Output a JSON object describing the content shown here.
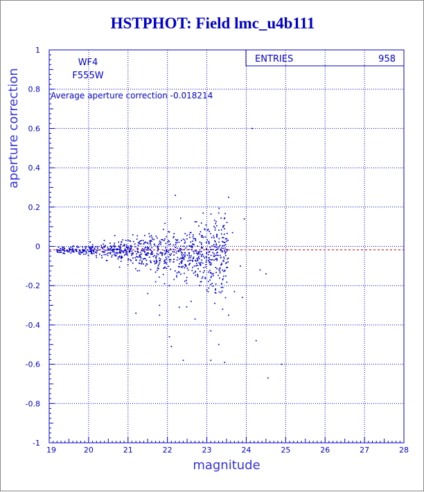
{
  "title": "HSTPHOT: Field lmc_u4b111",
  "chart_data": {
    "type": "scatter",
    "xlabel": "magnitude",
    "ylabel": "aperture correction",
    "xlim": [
      19,
      28
    ],
    "ylim": [
      -1,
      1
    ],
    "x_ticks": [
      "19",
      "20",
      "21",
      "22",
      "23",
      "24",
      "25",
      "26",
      "27",
      "28"
    ],
    "y_ticks": [
      "1",
      "0.8",
      "0.6",
      "0.4",
      "0.2",
      "0",
      "-0.2",
      "-0.4",
      "-0.6",
      "-0.8",
      "-1"
    ],
    "grid": true,
    "labels": {
      "chip": "WF4",
      "filter": "F555W"
    },
    "annotation": "Average aperture correction -0.018214",
    "average_line": -0.018214,
    "stats": {
      "label": "ENTRIES",
      "value": "958"
    },
    "colors": {
      "points": "#0000cc",
      "average_line": "#cc0000",
      "frame": "#0000cc"
    },
    "outliers": [
      [
        24.15,
        0.6
      ],
      [
        22.2,
        0.26
      ],
      [
        23.55,
        0.25
      ],
      [
        23.3,
        0.17
      ],
      [
        23.45,
        0.09
      ],
      [
        23.95,
        0.14
      ],
      [
        23.65,
        0.07
      ],
      [
        24.35,
        -0.12
      ],
      [
        24.5,
        -0.14
      ],
      [
        23.9,
        -0.26
      ],
      [
        23.7,
        -0.23
      ],
      [
        23.2,
        -0.29
      ],
      [
        23.4,
        -0.32
      ],
      [
        23.55,
        -0.35
      ],
      [
        23.1,
        -0.43
      ],
      [
        22.05,
        -0.46
      ],
      [
        22.1,
        -0.51
      ],
      [
        23.3,
        -0.5
      ],
      [
        24.25,
        -0.48
      ],
      [
        22.4,
        -0.58
      ],
      [
        23.1,
        -0.58
      ],
      [
        23.45,
        -0.59
      ],
      [
        24.9,
        -0.6
      ],
      [
        24.55,
        -0.67
      ],
      [
        22.7,
        -0.37
      ],
      [
        21.5,
        -0.24
      ],
      [
        21.8,
        -0.3
      ],
      [
        21.2,
        -0.34
      ],
      [
        21.8,
        -0.35
      ],
      [
        22.3,
        -0.31
      ],
      [
        22.6,
        -0.28
      ],
      [
        22.05,
        -0.2
      ],
      [
        21.7,
        -0.18
      ],
      [
        23.25,
        0.06
      ],
      [
        23.85,
        -0.1
      ]
    ],
    "core_model": {
      "count": 923,
      "x_range": [
        19,
        23.4
      ],
      "center": -0.018,
      "spread": [
        0.01,
        0.16
      ],
      "density": "decreasing with magnitude"
    }
  }
}
